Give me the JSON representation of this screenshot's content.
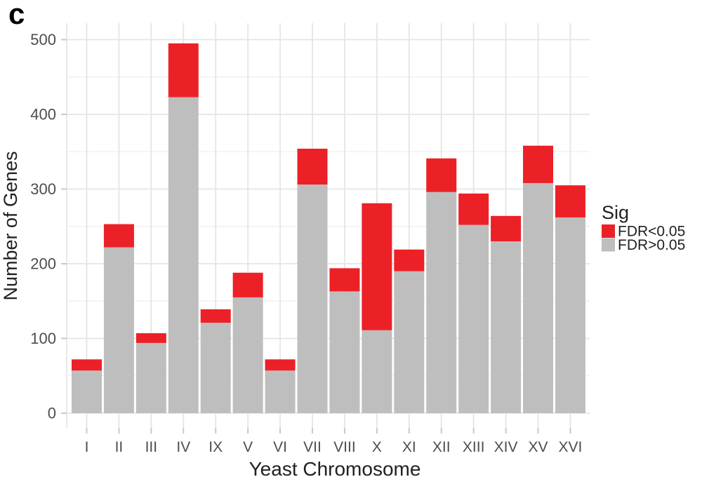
{
  "panel_label": "c",
  "colors": {
    "sig_red": "#EC2127",
    "nonsig_gray": "#BEBEBE",
    "grid_major": "#E5E5E5",
    "grid_minor": "#F1F1F1",
    "tick_mark": "#C9C9C9",
    "axis_tick_text": "#4D4D4D",
    "axis_title_text": "#212121",
    "background": "#FFFFFF"
  },
  "legend": {
    "title": "Sig",
    "position": "right",
    "items": [
      {
        "label": "FDR<0.05",
        "color_key": "sig_red"
      },
      {
        "label": "FDR>0.05",
        "color_key": "nonsig_gray"
      }
    ]
  },
  "chart_data": {
    "type": "bar",
    "stacked": true,
    "title": "",
    "xlabel": "Yeast Chromosome",
    "ylabel": "Number of Genes",
    "categories": [
      "I",
      "II",
      "III",
      "IV",
      "IX",
      "V",
      "VI",
      "VII",
      "VIII",
      "X",
      "XI",
      "XII",
      "XIII",
      "XIV",
      "XV",
      "XVI"
    ],
    "series": [
      {
        "name": "FDR>0.05",
        "color_key": "nonsig_gray",
        "values": [
          57,
          222,
          94,
          423,
          121,
          155,
          57,
          306,
          163,
          111,
          190,
          296,
          252,
          230,
          308,
          262
        ]
      },
      {
        "name": "FDR<0.05",
        "color_key": "sig_red",
        "values": [
          15,
          31,
          13,
          72,
          18,
          33,
          15,
          48,
          31,
          170,
          29,
          45,
          42,
          34,
          50,
          43
        ]
      }
    ],
    "totals": [
      72,
      253,
      107,
      495,
      139,
      188,
      72,
      354,
      194,
      281,
      219,
      341,
      294,
      264,
      358,
      305
    ],
    "ylim": [
      0,
      500
    ],
    "yticks": [
      0,
      100,
      200,
      300,
      400,
      500
    ],
    "yticks_minor": [
      50,
      150,
      250,
      350,
      450
    ],
    "grid": true,
    "legend_position": "right"
  }
}
